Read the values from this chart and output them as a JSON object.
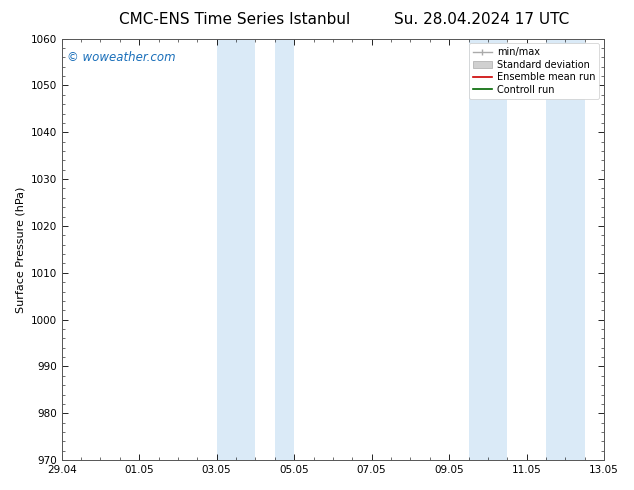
{
  "title_left": "CMC-ENS Time Series Istanbul",
  "title_right": "Su. 28.04.2024 17 UTC",
  "ylabel": "Surface Pressure (hPa)",
  "ylim": [
    970,
    1060
  ],
  "yticks": [
    970,
    980,
    990,
    1000,
    1010,
    1020,
    1030,
    1040,
    1050,
    1060
  ],
  "xtick_labels": [
    "29.04",
    "01.05",
    "03.05",
    "05.05",
    "07.05",
    "09.05",
    "11.05",
    "13.05"
  ],
  "xtick_positions": [
    0,
    2,
    4,
    6,
    8,
    10,
    12,
    14
  ],
  "xlim": [
    0,
    14
  ],
  "shaded_bands": [
    {
      "x_start": 4.0,
      "x_end": 5.0
    },
    {
      "x_start": 5.5,
      "x_end": 6.0
    },
    {
      "x_start": 10.5,
      "x_end": 11.5
    },
    {
      "x_start": 12.5,
      "x_end": 13.5
    }
  ],
  "shaded_color": "#daeaf7",
  "watermark": "© woweather.com",
  "watermark_color": "#1a6fba",
  "legend_entries": [
    {
      "label": "min/max",
      "color": "#aaaaaa",
      "type": "errorbar"
    },
    {
      "label": "Standard deviation",
      "color": "#cccccc",
      "type": "band"
    },
    {
      "label": "Ensemble mean run",
      "color": "#cc0000",
      "type": "line"
    },
    {
      "label": "Controll run",
      "color": "#006600",
      "type": "line"
    }
  ],
  "bg_color": "#ffffff",
  "title_fontsize": 11,
  "label_fontsize": 8,
  "tick_fontsize": 7.5,
  "legend_fontsize": 7
}
